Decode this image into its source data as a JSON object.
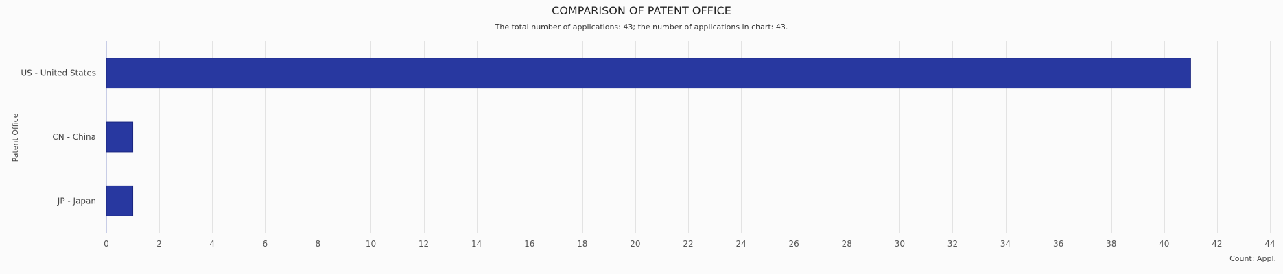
{
  "chart_data": {
    "type": "bar",
    "orientation": "horizontal",
    "title": "COMPARISON OF PATENT OFFICE",
    "subtitle": "The total number of applications: 43; the number of applications in chart: 43.",
    "ylabel": "Patent Office",
    "xlabel": "Count: Appl.",
    "categories": [
      "US - United States",
      "CN - China",
      "JP - Japan"
    ],
    "values": [
      41,
      1,
      1
    ],
    "xlim": [
      0,
      44
    ],
    "xticks": [
      0,
      2,
      4,
      6,
      8,
      10,
      12,
      14,
      16,
      18,
      20,
      22,
      24,
      26,
      28,
      30,
      32,
      34,
      36,
      38,
      40,
      42,
      44
    ],
    "grid": true,
    "bar_color": "#2838a0",
    "bar_border_color": "#1a2680"
  }
}
